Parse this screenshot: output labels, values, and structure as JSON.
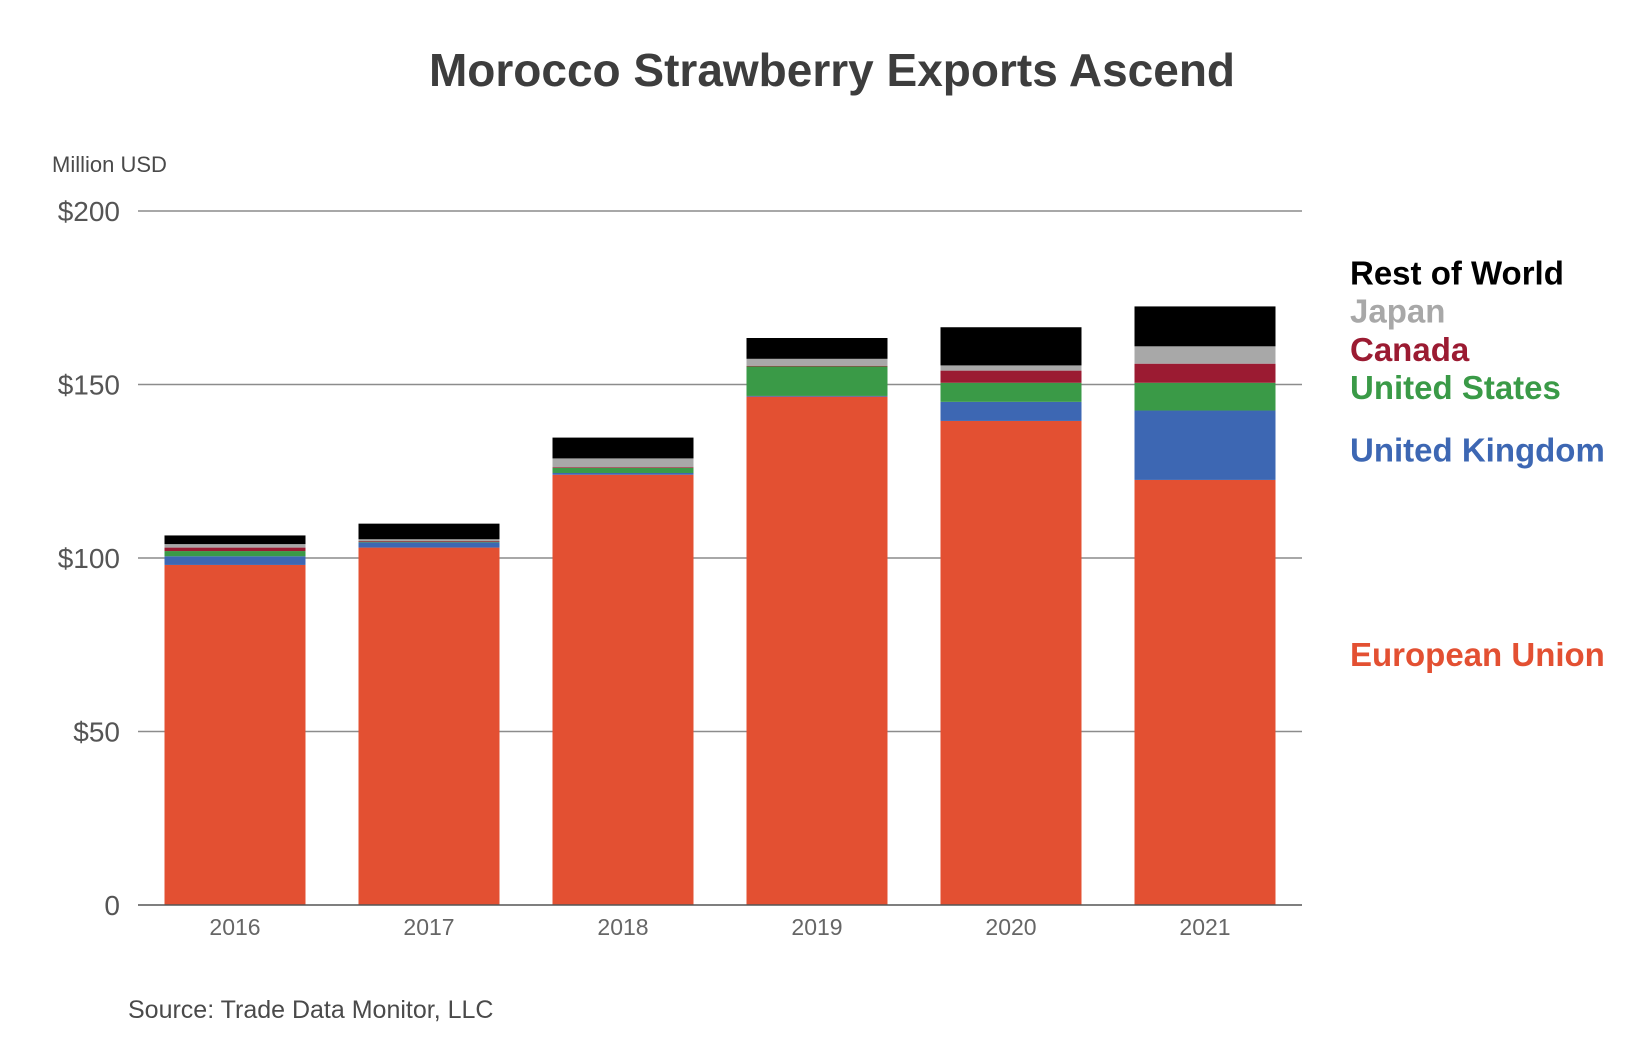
{
  "chart_data": {
    "type": "bar",
    "stacked": true,
    "title": "Morocco Strawberry Exports Ascend",
    "ylabel": "Million USD",
    "xlabel": "",
    "ylim": [
      0,
      200
    ],
    "yticks": [
      {
        "value": 0,
        "label": "0"
      },
      {
        "value": 50,
        "label": "$50"
      },
      {
        "value": 100,
        "label": "$100"
      },
      {
        "value": 150,
        "label": "$150"
      },
      {
        "value": 200,
        "label": "$200"
      }
    ],
    "categories": [
      "2016",
      "2017",
      "2018",
      "2019",
      "2020",
      "2021"
    ],
    "series": [
      {
        "name": "European Union",
        "color": "#e35032",
        "legend_value": 72,
        "values": [
          98.0,
          103.0,
          124.0,
          146.5,
          139.5,
          122.5
        ]
      },
      {
        "name": "United Kingdom",
        "color": "#3d67b3",
        "legend_value": 131,
        "values": [
          2.5,
          1.5,
          0.5,
          0.2,
          5.5,
          20.0
        ]
      },
      {
        "name": "United States",
        "color": "#3a9a47",
        "legend_value": 149,
        "values": [
          1.5,
          0.2,
          1.5,
          8.5,
          5.5,
          8.0
        ]
      },
      {
        "name": "Canada",
        "color": "#9b1b32",
        "legend_value": 160,
        "values": [
          1.0,
          0.2,
          0.2,
          0.2,
          3.5,
          5.5
        ]
      },
      {
        "name": "Japan",
        "color": "#a8a8a8",
        "legend_value": 171,
        "values": [
          1.0,
          0.5,
          2.5,
          2.0,
          1.5,
          5.0
        ]
      },
      {
        "name": "Rest of World",
        "color": "#000000",
        "legend_value": 182,
        "values": [
          2.5,
          4.5,
          6.0,
          6.0,
          11.0,
          11.5
        ]
      }
    ],
    "legend": "right",
    "grid": true,
    "source": "Source: Trade Data Monitor, LLC"
  }
}
